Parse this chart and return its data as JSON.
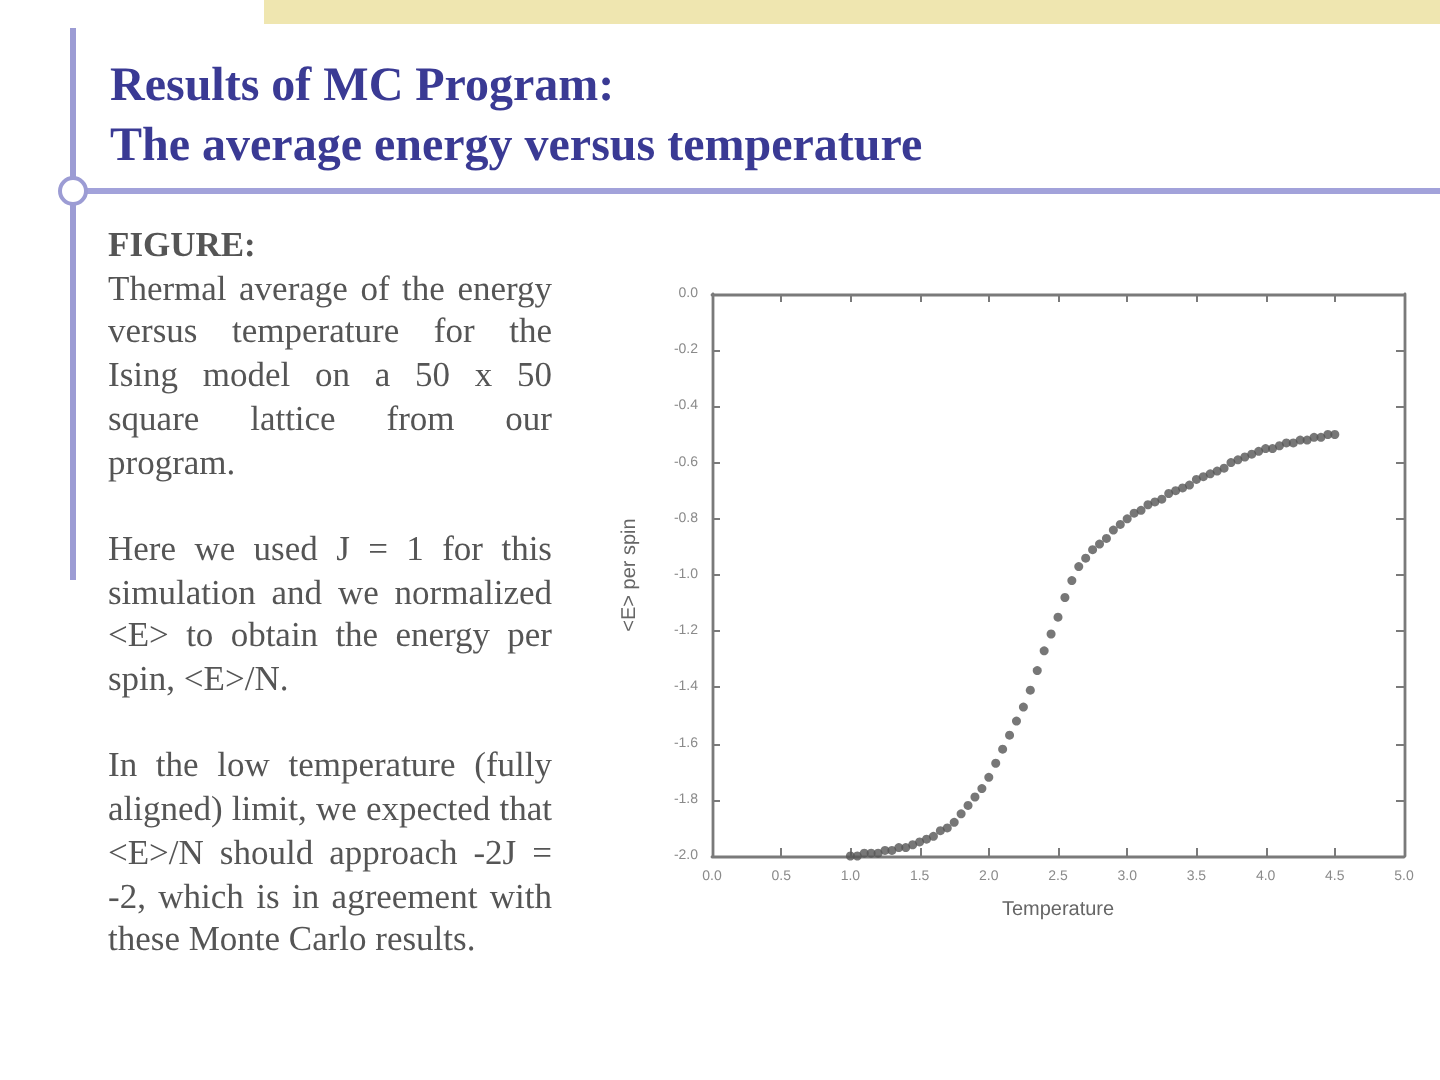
{
  "chart_data": {
    "type": "scatter",
    "title": "Results of MC Program:",
    "subtitle": "The average energy versus temperature",
    "annotations": [
      "FIGURE:",
      "Thermal average of the energy versus temperature for the Ising model on a 50 x 50 square lattice from our program.",
      "Here we used J = 1 for this simulation and we normalized <E> to obtain the energy per spin, <E>/N.",
      "In the low temperature (fully aligned) limit, we expected that <E>/N should approach -2J = -2, which is in agreement with these Monte Carlo results."
    ],
    "xlabel": "Temperature",
    "ylabel": "<E> per spin",
    "x": [
      1.0,
      1.05,
      1.1,
      1.15,
      1.2,
      1.25,
      1.3,
      1.35,
      1.4,
      1.45,
      1.5,
      1.55,
      1.6,
      1.65,
      1.7,
      1.75,
      1.8,
      1.85,
      1.9,
      1.95,
      2.0,
      2.05,
      2.1,
      2.15,
      2.2,
      2.25,
      2.3,
      2.35,
      2.4,
      2.45,
      2.5,
      2.55,
      2.6,
      2.65,
      2.7,
      2.75,
      2.8,
      2.85,
      2.9,
      2.95,
      3.0,
      3.05,
      3.1,
      3.15,
      3.2,
      3.25,
      3.3,
      3.35,
      3.4,
      3.45,
      3.5,
      3.55,
      3.6,
      3.65,
      3.7,
      3.75,
      3.8,
      3.85,
      3.9,
      3.95,
      4.0,
      4.05,
      4.1,
      4.15,
      4.2,
      4.25,
      4.3,
      4.35,
      4.4,
      4.45,
      4.5
    ],
    "series": [
      {
        "color": "#555555",
        "values": [
          -2.0,
          -2.0,
          -1.99,
          -1.99,
          -1.99,
          -1.98,
          -1.98,
          -1.97,
          -1.97,
          -1.96,
          -1.95,
          -1.94,
          -1.93,
          -1.91,
          -1.9,
          -1.88,
          -1.85,
          -1.82,
          -1.79,
          -1.76,
          -1.72,
          -1.67,
          -1.62,
          -1.57,
          -1.52,
          -1.47,
          -1.41,
          -1.34,
          -1.27,
          -1.21,
          -1.15,
          -1.08,
          -1.02,
          -0.97,
          -0.94,
          -0.91,
          -0.89,
          -0.87,
          -0.84,
          -0.82,
          -0.8,
          -0.78,
          -0.77,
          -0.75,
          -0.74,
          -0.73,
          -0.71,
          -0.7,
          -0.69,
          -0.68,
          -0.66,
          -0.65,
          -0.64,
          -0.63,
          -0.62,
          -0.6,
          -0.59,
          -0.58,
          -0.57,
          -0.56,
          -0.55,
          -0.55,
          -0.54,
          -0.53,
          -0.53,
          -0.52,
          -0.52,
          -0.51,
          -0.51,
          -0.5,
          -0.5
        ]
      }
    ],
    "xlim": [
      0,
      5
    ],
    "xticks": [
      {
        "value": 0,
        "label": "0.0"
      },
      0.5,
      {
        "value": 1,
        "label": "1.0"
      },
      1.5,
      {
        "value": 2,
        "label": "2.0"
      },
      2.5,
      {
        "value": 3,
        "label": "3.0"
      },
      3.5,
      {
        "value": 4,
        "label": "4.0"
      },
      4.5,
      {
        "value": 5,
        "label": "5.0"
      }
    ],
    "ylim": [
      -2,
      0
    ],
    "yticks": [
      {
        "value": -2,
        "label": "-2.0"
      },
      -1.8,
      -1.6,
      -1.4,
      -1.2,
      {
        "value": -1,
        "label": "-1.0"
      },
      -0.8,
      -0.6,
      -0.4,
      -0.2,
      {
        "value": 0,
        "label": "0.0"
      }
    ],
    "marker": "circle",
    "grid": false
  }
}
